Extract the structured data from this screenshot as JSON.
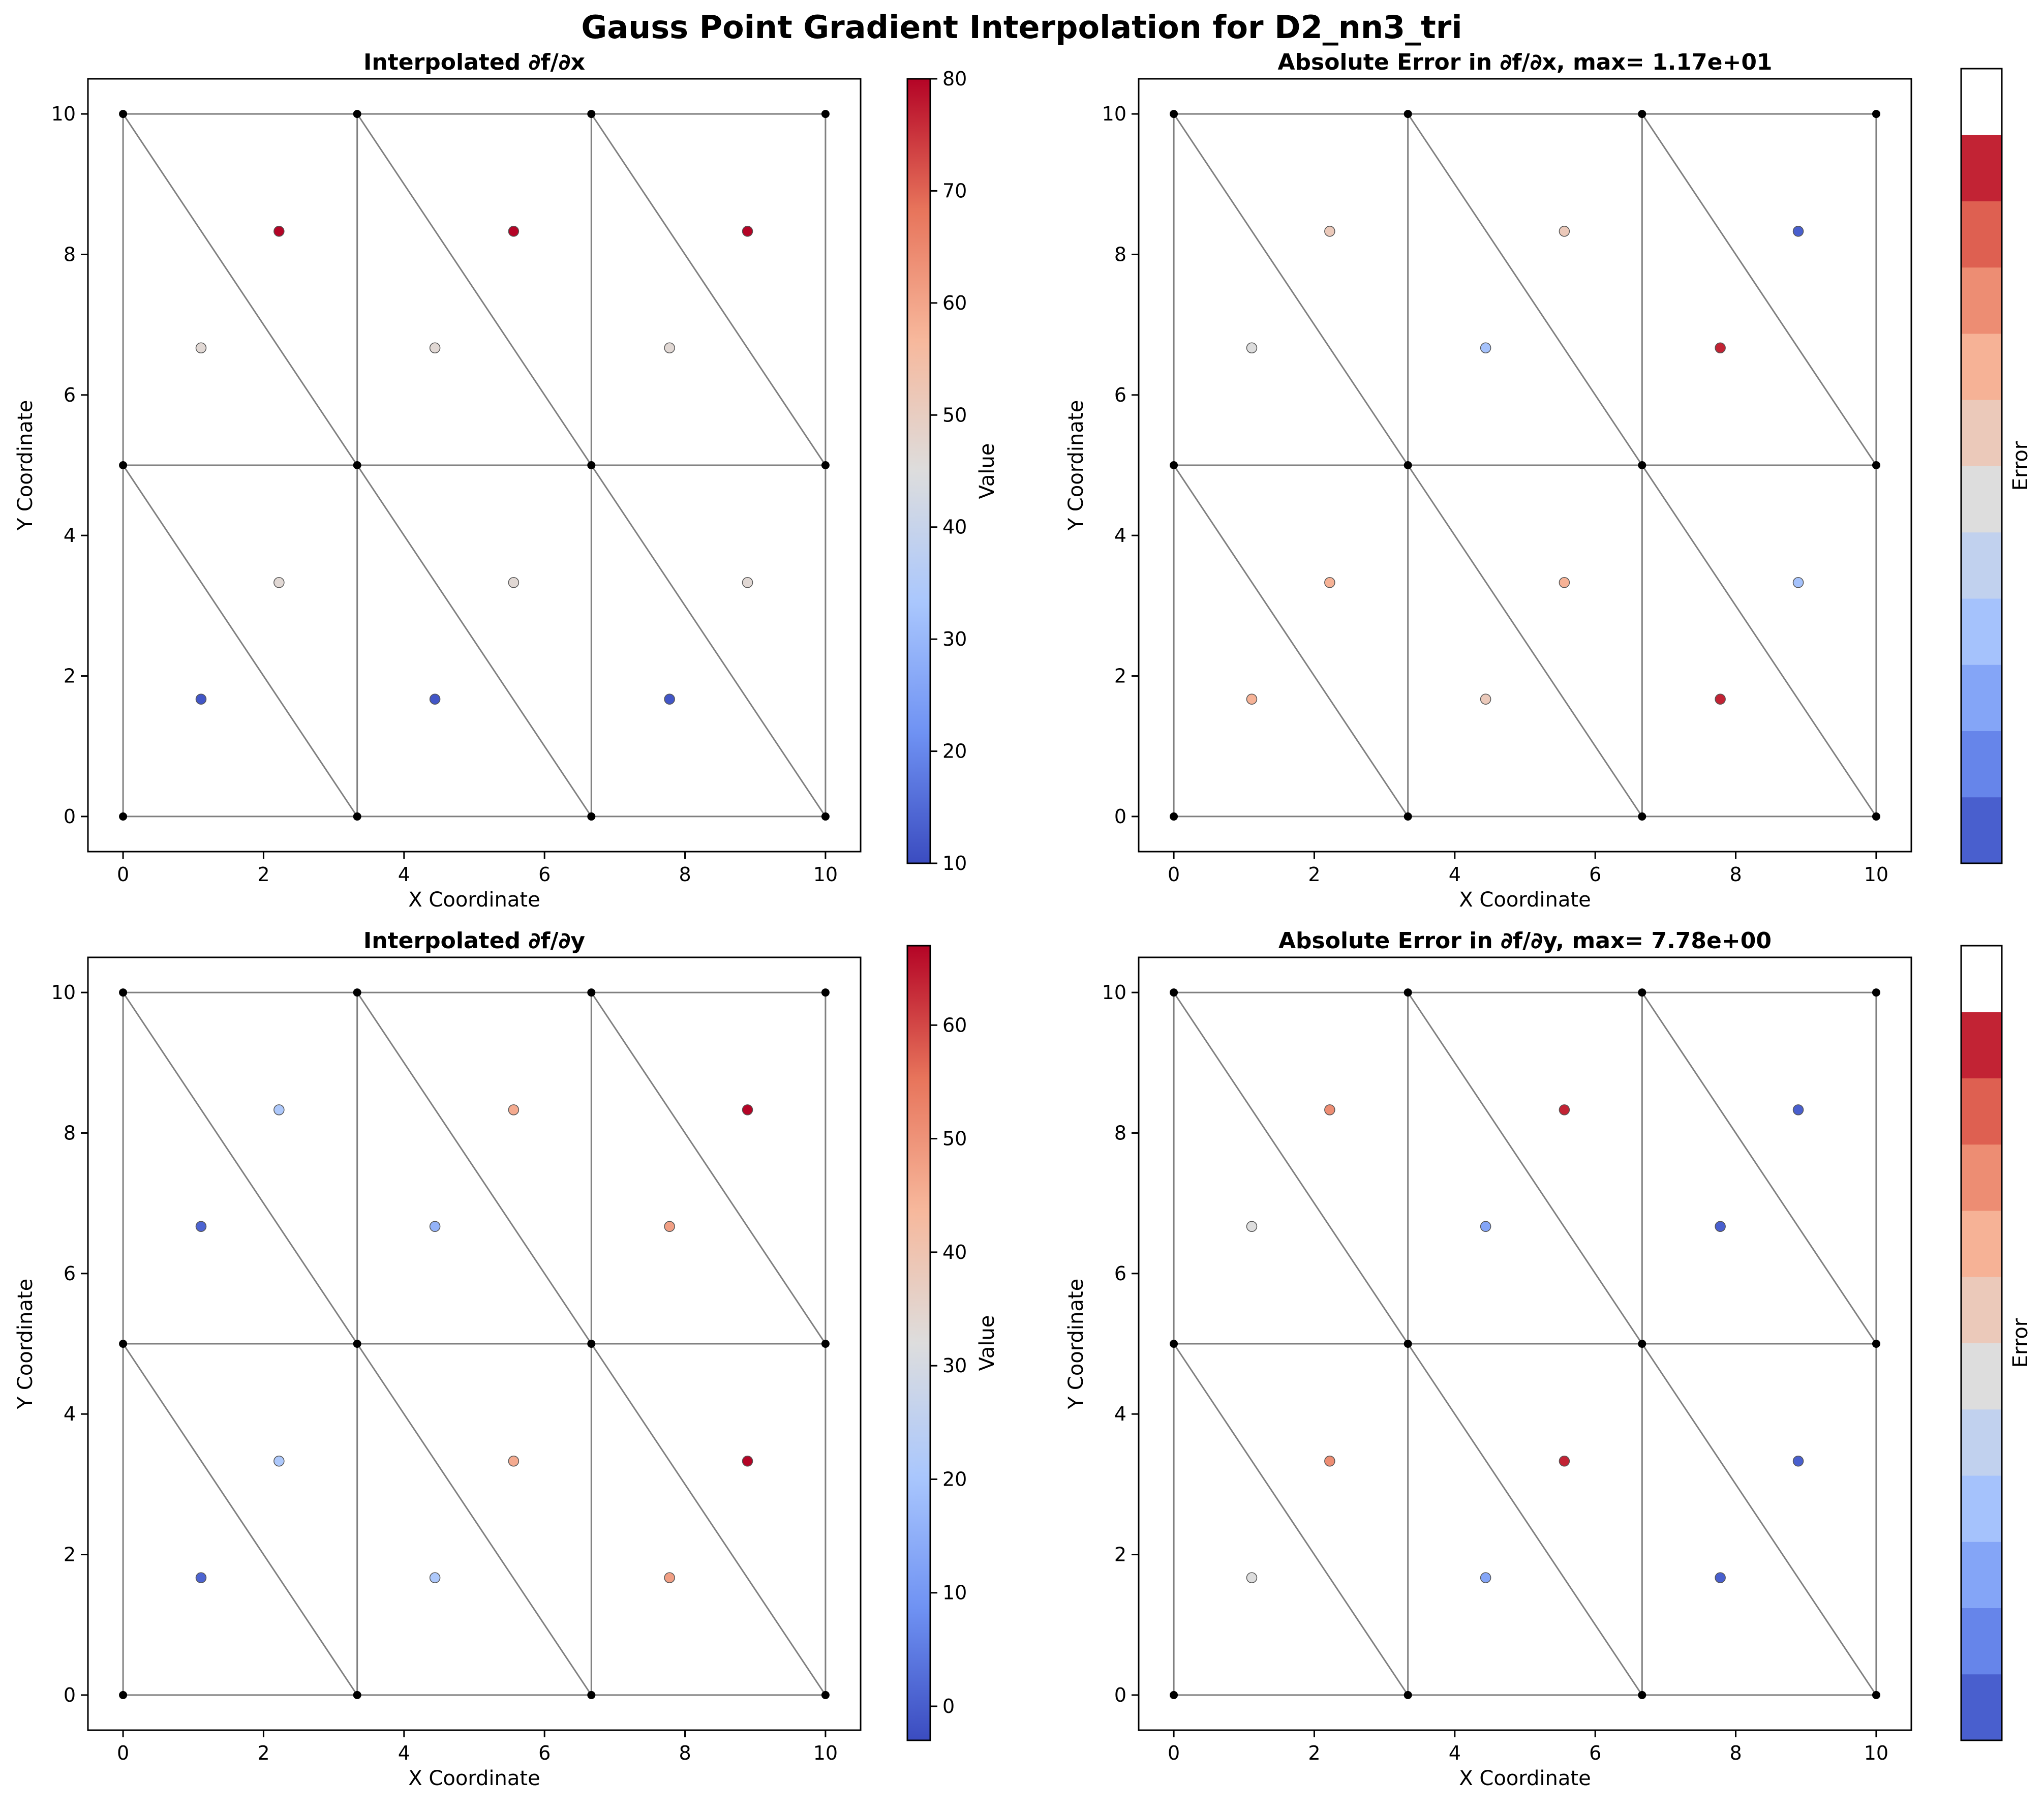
{
  "figure": {
    "title": "Gauss Point Gradient Interpolation for D2_nn3_tri"
  },
  "colormap": {
    "name": "coolwarm",
    "stops": [
      "#3b4cc0",
      "#6f92f3",
      "#aac7fd",
      "#dddddd",
      "#f7b89c",
      "#e7745b",
      "#b40426"
    ]
  },
  "chart_data": [
    {
      "id": "dfdx",
      "type": "scatter",
      "title": "Interpolated ∂f/∂x",
      "xlabel": "X Coordinate",
      "ylabel": "Y Coordinate",
      "xlim": [
        -0.5,
        10.5
      ],
      "ylim": [
        -0.5,
        10.5
      ],
      "xticks": [
        0,
        2,
        4,
        6,
        8,
        10
      ],
      "yticks": [
        0,
        2,
        4,
        6,
        8,
        10
      ],
      "colorbar": {
        "label": "Value",
        "kind": "continuous",
        "range": [
          10,
          80
        ],
        "ticks": [
          10,
          20,
          30,
          40,
          50,
          60,
          70,
          80
        ]
      },
      "points": [
        {
          "x": 1.11,
          "y": 1.67,
          "v": 11.6
        },
        {
          "x": 2.22,
          "y": 3.33,
          "v": 46.6
        },
        {
          "x": 1.11,
          "y": 6.67,
          "v": 46.6
        },
        {
          "x": 2.22,
          "y": 8.33,
          "v": 80.0
        },
        {
          "x": 4.44,
          "y": 1.67,
          "v": 11.6
        },
        {
          "x": 5.56,
          "y": 3.33,
          "v": 46.6
        },
        {
          "x": 4.44,
          "y": 6.67,
          "v": 46.6
        },
        {
          "x": 5.56,
          "y": 8.33,
          "v": 80.0
        },
        {
          "x": 7.78,
          "y": 1.67,
          "v": 11.6
        },
        {
          "x": 8.89,
          "y": 3.33,
          "v": 46.6
        },
        {
          "x": 7.78,
          "y": 6.67,
          "v": 46.6
        },
        {
          "x": 8.89,
          "y": 8.33,
          "v": 80.0
        }
      ]
    },
    {
      "id": "err_dfdx",
      "type": "scatter",
      "title": "Absolute Error in ∂f/∂x, max= 1.17e+01",
      "xlabel": "X Coordinate",
      "ylabel": "Y Coordinate",
      "xlim": [
        -0.5,
        10.5
      ],
      "ylim": [
        -0.5,
        10.5
      ],
      "xticks": [
        0,
        2,
        4,
        6,
        8,
        10
      ],
      "yticks": [
        0,
        2,
        4,
        6,
        8,
        10
      ],
      "colorbar": {
        "label": "Error",
        "kind": "discrete",
        "bins": 12,
        "top_bin_white": true
      },
      "points": [
        {
          "x": 1.11,
          "y": 1.67,
          "v": 0.68
        },
        {
          "x": 2.22,
          "y": 3.33,
          "v": 0.68
        },
        {
          "x": 1.11,
          "y": 6.67,
          "v": 0.5
        },
        {
          "x": 2.22,
          "y": 8.33,
          "v": 0.63
        },
        {
          "x": 4.44,
          "y": 1.67,
          "v": 0.6
        },
        {
          "x": 5.56,
          "y": 3.33,
          "v": 0.66
        },
        {
          "x": 4.44,
          "y": 6.67,
          "v": 0.3
        },
        {
          "x": 5.56,
          "y": 8.33,
          "v": 0.62
        },
        {
          "x": 7.78,
          "y": 1.67,
          "v": 1.0
        },
        {
          "x": 8.89,
          "y": 3.33,
          "v": 0.32
        },
        {
          "x": 7.78,
          "y": 6.67,
          "v": 1.0
        },
        {
          "x": 8.89,
          "y": 8.33,
          "v": 0.05
        }
      ]
    },
    {
      "id": "dfdy",
      "type": "scatter",
      "title": "Interpolated ∂f/∂y",
      "xlabel": "X Coordinate",
      "ylabel": "Y Coordinate",
      "xlim": [
        -0.5,
        10.5
      ],
      "ylim": [
        -0.5,
        10.5
      ],
      "xticks": [
        0,
        2,
        4,
        6,
        8,
        10
      ],
      "yticks": [
        0,
        2,
        4,
        6,
        8,
        10
      ],
      "colorbar": {
        "label": "Value",
        "kind": "continuous",
        "range": [
          -3,
          67
        ],
        "ticks": [
          0,
          10,
          20,
          30,
          40,
          50,
          60
        ]
      },
      "points": [
        {
          "x": 1.11,
          "y": 1.67,
          "v": 1.0
        },
        {
          "x": 2.22,
          "y": 3.33,
          "v": 21.0
        },
        {
          "x": 1.11,
          "y": 6.67,
          "v": 1.0
        },
        {
          "x": 2.22,
          "y": 8.33,
          "v": 21.0
        },
        {
          "x": 4.44,
          "y": 1.67,
          "v": 21.0
        },
        {
          "x": 5.56,
          "y": 3.33,
          "v": 46.0
        },
        {
          "x": 4.44,
          "y": 6.67,
          "v": 16.0
        },
        {
          "x": 5.56,
          "y": 8.33,
          "v": 46.0
        },
        {
          "x": 7.78,
          "y": 1.67,
          "v": 48.0
        },
        {
          "x": 8.89,
          "y": 3.33,
          "v": 67.0
        },
        {
          "x": 7.78,
          "y": 6.67,
          "v": 48.0
        },
        {
          "x": 8.89,
          "y": 8.33,
          "v": 67.0
        }
      ]
    },
    {
      "id": "err_dfdy",
      "type": "scatter",
      "title": "Absolute Error in ∂f/∂y, max= 7.78e+00",
      "xlabel": "X Coordinate",
      "ylabel": "Y Coordinate",
      "xlim": [
        -0.5,
        10.5
      ],
      "ylim": [
        -0.5,
        10.5
      ],
      "xticks": [
        0,
        2,
        4,
        6,
        8,
        10
      ],
      "yticks": [
        0,
        2,
        4,
        6,
        8,
        10
      ],
      "colorbar": {
        "label": "Error",
        "kind": "discrete",
        "bins": 12,
        "top_bin_white": true
      },
      "points": [
        {
          "x": 1.11,
          "y": 1.67,
          "v": 0.5
        },
        {
          "x": 2.22,
          "y": 3.33,
          "v": 0.75
        },
        {
          "x": 1.11,
          "y": 6.67,
          "v": 0.5
        },
        {
          "x": 2.22,
          "y": 8.33,
          "v": 0.75
        },
        {
          "x": 4.44,
          "y": 1.67,
          "v": 0.25
        },
        {
          "x": 5.56,
          "y": 3.33,
          "v": 1.0
        },
        {
          "x": 4.44,
          "y": 6.67,
          "v": 0.25
        },
        {
          "x": 5.56,
          "y": 8.33,
          "v": 1.0
        },
        {
          "x": 7.78,
          "y": 1.67,
          "v": 0.02
        },
        {
          "x": 8.89,
          "y": 3.33,
          "v": 0.02
        },
        {
          "x": 7.78,
          "y": 6.67,
          "v": 0.02
        },
        {
          "x": 8.89,
          "y": 8.33,
          "v": 0.02
        }
      ]
    }
  ],
  "mesh": {
    "nodes_x": [
      0,
      3.3333,
      6.6667,
      10
    ],
    "nodes_y": [
      0,
      5,
      10
    ],
    "edge_color": "#808080",
    "node_color": "#000000"
  }
}
